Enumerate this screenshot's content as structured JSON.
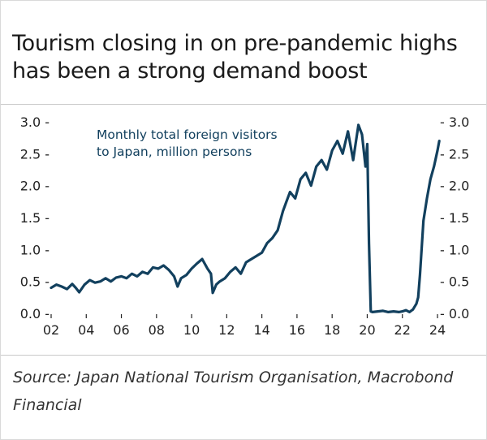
{
  "title": "Tourism closing in on pre-pandemic highs has been a strong demand boost",
  "source": "Source: Japan National Tourism Organisation, Macrobond Financial",
  "colors": {
    "series": "#12405e",
    "text": "#1a1a1a",
    "rule": "#c9c9c9"
  },
  "chart_data": {
    "type": "line",
    "annotation": [
      "Monthly total foreign visitors",
      "to Japan, million persons"
    ],
    "xlim": [
      2002,
      2024.2
    ],
    "ylim": [
      0,
      3.0
    ],
    "x_ticks": [
      2002,
      2004,
      2006,
      2008,
      2010,
      2012,
      2014,
      2016,
      2018,
      2020,
      2022,
      2024
    ],
    "x_tick_labels": [
      "02",
      "04",
      "06",
      "08",
      "10",
      "12",
      "14",
      "16",
      "18",
      "20",
      "22",
      "24"
    ],
    "y_ticks": [
      0,
      0.5,
      1.0,
      1.5,
      2.0,
      2.5,
      3.0
    ],
    "y_tick_labels_left": [
      "0.0 -",
      "0.5 -",
      "1.0 -",
      "1.5 -",
      "2.0 -",
      "2.5 -",
      "3.0 -"
    ],
    "y_tick_labels_right": [
      "- 0.0",
      "- 0.5",
      "- 1.0",
      "- 1.5",
      "- 2.0",
      "- 2.5",
      "- 3.0"
    ],
    "series": [
      {
        "name": "Monthly total foreign visitors to Japan, million persons",
        "x": [
          2002.0,
          2002.3,
          2002.6,
          2002.9,
          2003.2,
          2003.4,
          2003.6,
          2003.9,
          2004.2,
          2004.5,
          2004.8,
          2005.1,
          2005.4,
          2005.7,
          2006.0,
          2006.3,
          2006.6,
          2006.9,
          2007.2,
          2007.5,
          2007.8,
          2008.1,
          2008.4,
          2008.7,
          2009.0,
          2009.2,
          2009.4,
          2009.7,
          2010.0,
          2010.3,
          2010.6,
          2010.9,
          2011.1,
          2011.2,
          2011.4,
          2011.6,
          2011.9,
          2012.2,
          2012.5,
          2012.8,
          2013.1,
          2013.4,
          2013.7,
          2014.0,
          2014.3,
          2014.6,
          2014.9,
          2015.2,
          2015.4,
          2015.6,
          2015.9,
          2016.2,
          2016.5,
          2016.8,
          2017.1,
          2017.4,
          2017.7,
          2018.0,
          2018.3,
          2018.6,
          2018.9,
          2019.2,
          2019.5,
          2019.7,
          2019.9,
          2020.0,
          2020.1,
          2020.2,
          2020.3,
          2020.6,
          2020.9,
          2021.2,
          2021.5,
          2021.8,
          2022.0,
          2022.2,
          2022.4,
          2022.6,
          2022.8,
          2022.9,
          2023.0,
          2023.2,
          2023.4,
          2023.6,
          2023.8,
          2024.0,
          2024.1
        ],
        "values": [
          0.4,
          0.45,
          0.42,
          0.38,
          0.46,
          0.4,
          0.33,
          0.45,
          0.52,
          0.48,
          0.5,
          0.55,
          0.5,
          0.56,
          0.58,
          0.55,
          0.62,
          0.58,
          0.65,
          0.62,
          0.72,
          0.7,
          0.75,
          0.68,
          0.58,
          0.42,
          0.55,
          0.6,
          0.7,
          0.78,
          0.85,
          0.7,
          0.62,
          0.32,
          0.45,
          0.5,
          0.55,
          0.65,
          0.72,
          0.62,
          0.8,
          0.85,
          0.9,
          0.95,
          1.1,
          1.18,
          1.3,
          1.6,
          1.75,
          1.9,
          1.8,
          2.1,
          2.2,
          2.0,
          2.3,
          2.4,
          2.25,
          2.55,
          2.7,
          2.5,
          2.85,
          2.4,
          2.95,
          2.8,
          2.3,
          2.65,
          1.1,
          0.03,
          0.02,
          0.03,
          0.04,
          0.02,
          0.03,
          0.02,
          0.03,
          0.05,
          0.02,
          0.06,
          0.15,
          0.25,
          0.6,
          1.45,
          1.8,
          2.1,
          2.3,
          2.55,
          2.7
        ]
      }
    ]
  }
}
